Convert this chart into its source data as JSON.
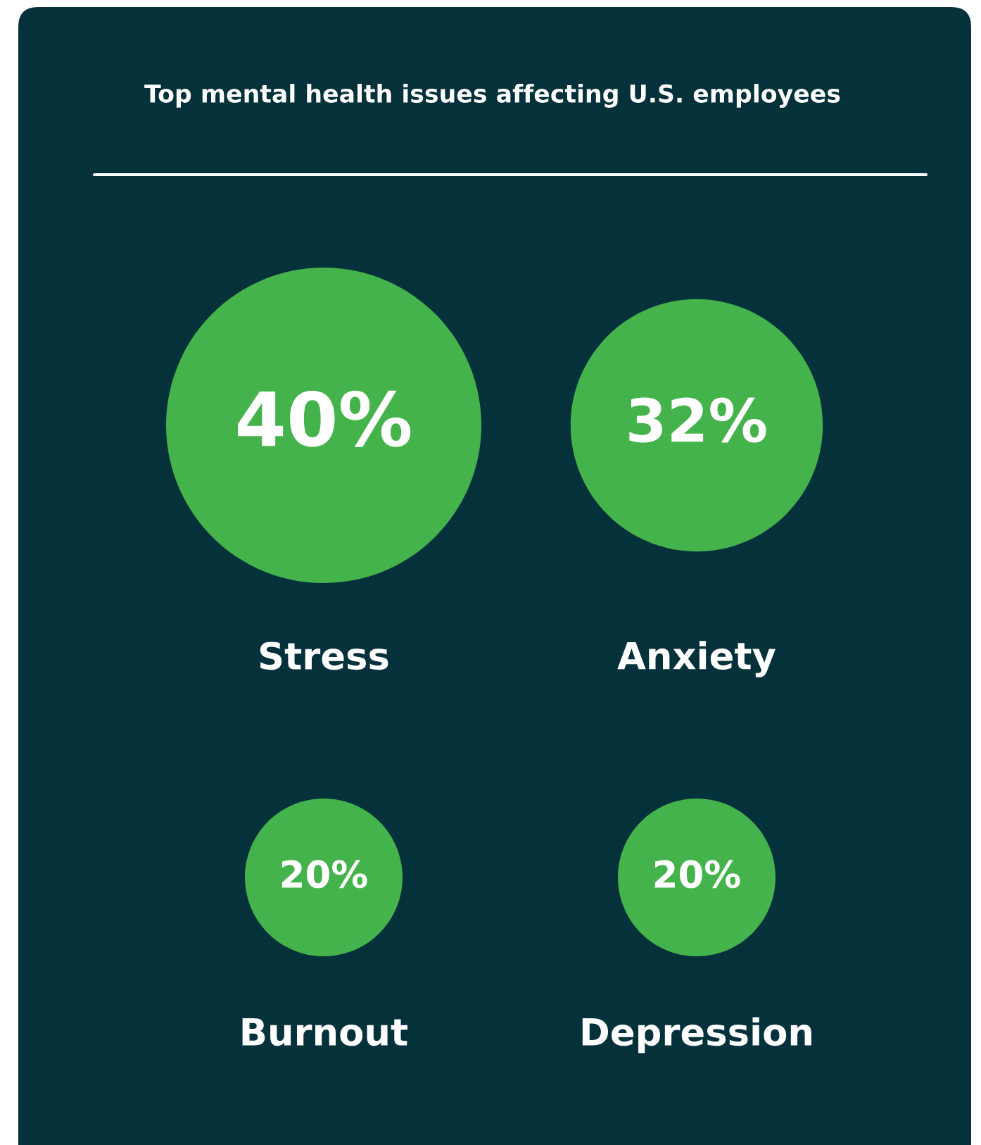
{
  "chart_data": {
    "type": "other",
    "title": "Top mental health issues affecting U.S. employees",
    "categories": [
      "Stress",
      "Anxiety",
      "Burnout",
      "Depression"
    ],
    "values": [
      40,
      32,
      20,
      20
    ],
    "value_labels": [
      "40%",
      "32%",
      "20%",
      "20%"
    ],
    "color": "#45b34c"
  }
}
